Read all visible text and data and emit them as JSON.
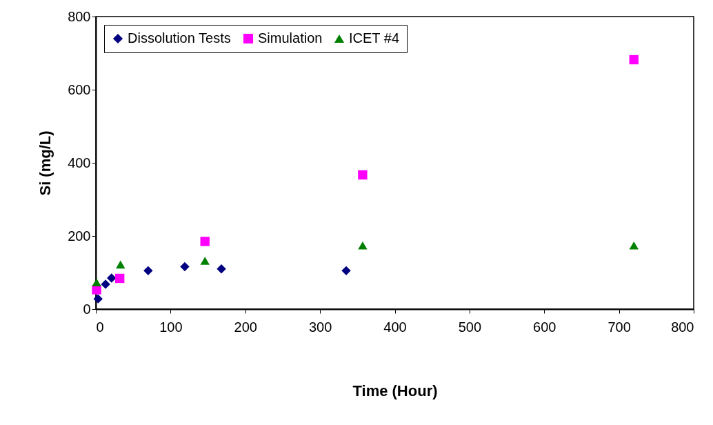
{
  "chart_data": {
    "type": "scatter",
    "xlabel": "Time (Hour)",
    "ylabel": "Si (mg/L)",
    "xlim": [
      0,
      800
    ],
    "xticks": [
      0,
      100,
      200,
      300,
      400,
      500,
      600,
      700,
      800
    ],
    "ylim": [
      0,
      800
    ],
    "yticks": [
      0,
      200,
      400,
      600,
      800
    ],
    "grid": false,
    "legend": "top left",
    "series": [
      {
        "name": "Dissolution Tests",
        "color": "#000080",
        "marker": "diamond",
        "x": [
          3,
          13,
          21,
          70,
          119,
          168,
          335
        ],
        "values": [
          28,
          68,
          85,
          105,
          116,
          110,
          105
        ]
      },
      {
        "name": "Simulation",
        "color": "#ff00ff",
        "marker": "square",
        "x": [
          1,
          32,
          146,
          357,
          720
        ],
        "values": [
          53,
          84,
          185,
          367,
          682
        ]
      },
      {
        "name": "ICET #4",
        "color": "#008000",
        "marker": "triangle",
        "x": [
          1,
          33,
          146,
          357,
          720
        ],
        "values": [
          73,
          122,
          132,
          174,
          174
        ]
      }
    ]
  }
}
